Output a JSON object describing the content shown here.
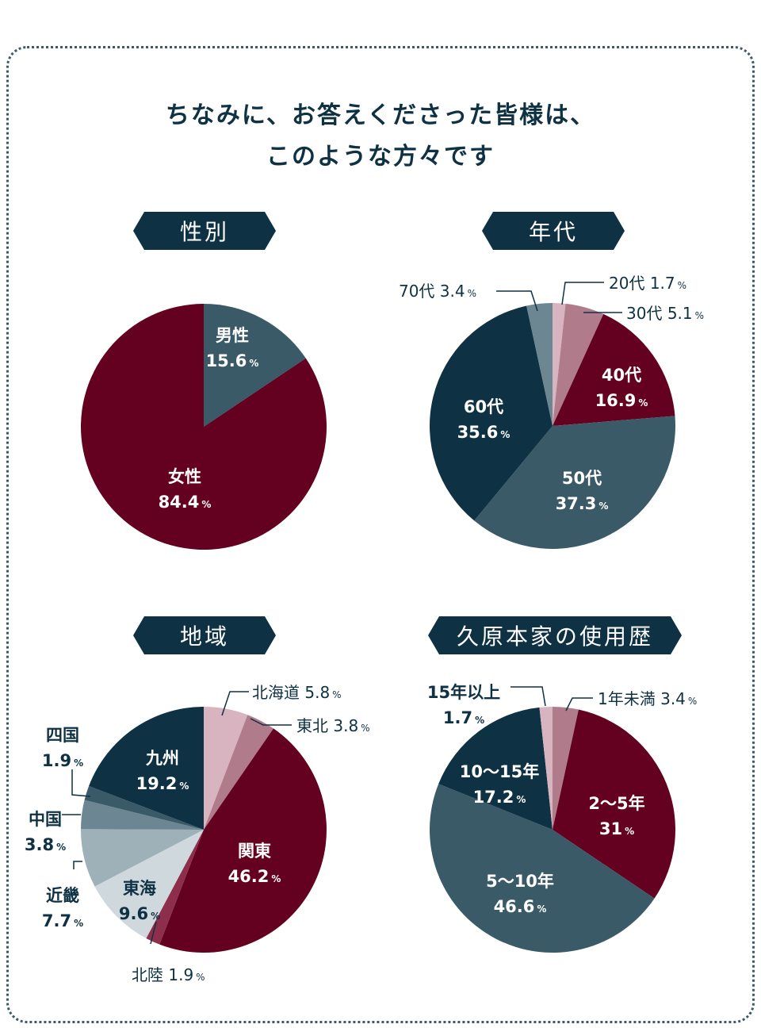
{
  "title": {
    "line1": "ちなみに、お答えくださった皆様は、",
    "line2": "このような方々です"
  },
  "unit": "%",
  "colors": {
    "navy": "#0e3143",
    "slate": "#3b5a68",
    "wine": "#640020",
    "rose": "#b07c8c",
    "pink": "#d7b4bf",
    "gray_blue": "#6d8792",
    "light_gray": "#9eb0b8",
    "pale": "#cfd8dc"
  },
  "chart_data": [
    {
      "id": "gender",
      "type": "pie",
      "title": "性別",
      "slices": [
        {
          "label": "男性",
          "value": 15.6,
          "color": "#3b5a68"
        },
        {
          "label": "女性",
          "value": 84.4,
          "color": "#640020"
        }
      ]
    },
    {
      "id": "age",
      "type": "pie",
      "title": "年代",
      "slices": [
        {
          "label": "20代",
          "value": 1.7,
          "color": "#d7b4bf"
        },
        {
          "label": "30代",
          "value": 5.1,
          "color": "#b07c8c"
        },
        {
          "label": "40代",
          "value": 16.9,
          "color": "#640020"
        },
        {
          "label": "50代",
          "value": 37.3,
          "color": "#3b5a68"
        },
        {
          "label": "60代",
          "value": 35.6,
          "color": "#0e3143"
        },
        {
          "label": "70代",
          "value": 3.4,
          "color": "#6d8792"
        }
      ]
    },
    {
      "id": "region",
      "type": "pie",
      "title": "地域",
      "slices": [
        {
          "label": "北海道",
          "value": 5.8,
          "color": "#d7b4bf"
        },
        {
          "label": "東北",
          "value": 3.8,
          "color": "#b07c8c"
        },
        {
          "label": "関東",
          "value": 46.2,
          "color": "#640020"
        },
        {
          "label": "北陸",
          "value": 1.9,
          "color": "#8c2e4c"
        },
        {
          "label": "東海",
          "value": 9.6,
          "color": "#cfd8dc"
        },
        {
          "label": "近畿",
          "value": 7.7,
          "color": "#9eb0b8"
        },
        {
          "label": "中国",
          "value": 3.8,
          "color": "#6d8792"
        },
        {
          "label": "四国",
          "value": 1.9,
          "color": "#3b5a68"
        },
        {
          "label": "九州",
          "value": 19.2,
          "color": "#0e3143"
        }
      ]
    },
    {
      "id": "usage",
      "type": "pie",
      "title": "久原本家の使用歴",
      "slices": [
        {
          "label": "1年未満",
          "value": 3.4,
          "color": "#b07c8c"
        },
        {
          "label": "2〜5年",
          "value": 31,
          "color": "#640020"
        },
        {
          "label": "5〜10年",
          "value": 46.6,
          "color": "#3b5a68"
        },
        {
          "label": "10〜15年",
          "value": 17.2,
          "color": "#0e3143"
        },
        {
          "label": "15年以上",
          "value": 1.7,
          "color": "#d7b4bf"
        }
      ]
    }
  ]
}
